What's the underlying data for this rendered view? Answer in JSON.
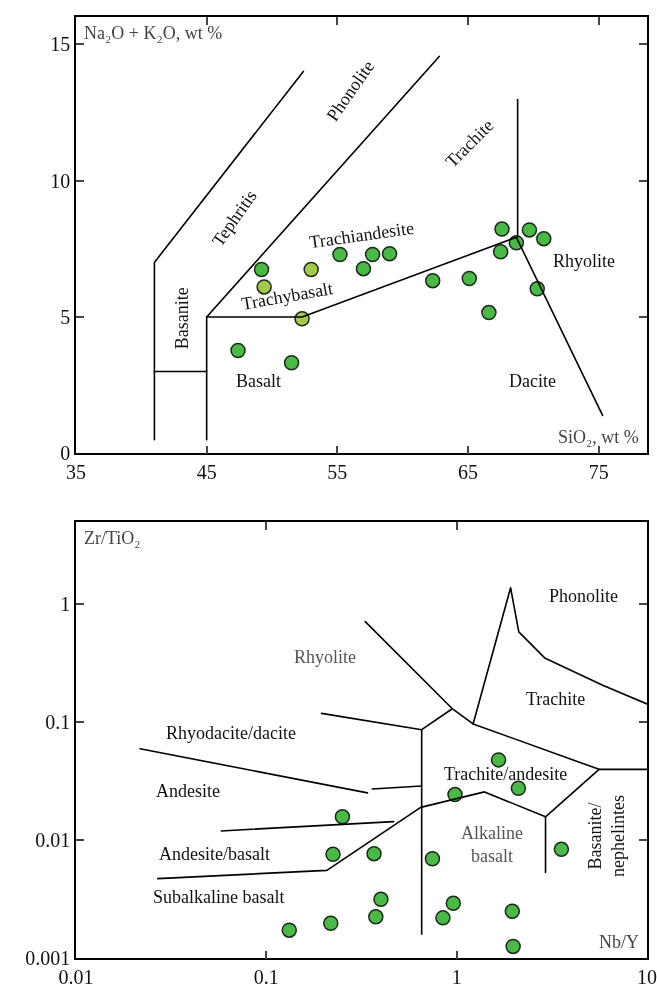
{
  "chart_data": [
    {
      "type": "scatter",
      "xlabel": "SiO₂, wt %",
      "ylabel": "Na₂O + K₂O, wt %",
      "xlim": [
        35,
        78.7
      ],
      "ylim": [
        0,
        16
      ],
      "xticks": [
        35,
        45,
        55,
        65,
        75
      ],
      "yticks": [
        0,
        5,
        10,
        15
      ],
      "series": [
        {
          "marker": "circle",
          "x": [
            49.2,
            49.4,
            53.0,
            52.3,
            55.2,
            57.7,
            57.0,
            59.0,
            62.3,
            65.1,
            66.6,
            67.6,
            67.5,
            68.7,
            69.7,
            70.8,
            70.3,
            47.4,
            51.5
          ],
          "values": [
            6.74,
            6.1,
            6.74,
            4.93,
            7.29,
            7.29,
            6.77,
            7.32,
            6.33,
            6.41,
            5.16,
            8.22,
            7.39,
            7.72,
            8.19,
            7.87,
            6.03,
            3.77,
            3.32
          ],
          "colors": [
            "#4cb848",
            "#a6c84a",
            "#a6c84a",
            "#a6c84a",
            "#4cb848",
            "#4cb848",
            "#4cb848",
            "#4cb848",
            "#4cb848",
            "#4cb848",
            "#4cb848",
            "#4cb848",
            "#4cb848",
            "#4cb848",
            "#4cb848",
            "#4cb848",
            "#4cb848",
            "#4cb848",
            "#4cb848"
          ]
        },
        {
          "type": "line",
          "marker": "none",
          "color": "#000000",
          "x": [
            41,
            41,
            52.4,
            null,
            45,
            45,
            62.8,
            null,
            41,
            45,
            null,
            45,
            52.3,
            68.7,
            75.3,
            null,
            68.8,
            68.8
          ],
          "values": [
            0.5,
            7,
            14,
            null,
            0.5,
            5,
            14.55,
            null,
            3,
            3,
            null,
            5,
            5,
            7.92,
            1.39,
            null,
            12.97,
            7.92
          ]
        }
      ],
      "annotations": [
        "Basanite",
        "Tephritis",
        "Phonolite",
        "Trachite",
        "Trachiandesite",
        "Trachybasalt",
        "Rhyolite",
        "Basalt",
        "Dacite"
      ]
    },
    {
      "type": "scatter",
      "xlabel": "Nb/Y",
      "ylabel": "Zr/TiO₂",
      "log": "xy",
      "xlim": [
        0.01,
        10
      ],
      "ylim": [
        0.001,
        5
      ],
      "xticks": [
        0.01,
        0.1,
        1,
        10
      ],
      "yticks": [
        0.001,
        0.01,
        0.1,
        1
      ],
      "series": [
        {
          "marker": "circle",
          "x": [
            0.132,
            0.218,
            0.376,
            0.4,
            0.224,
            0.368,
            0.251,
            0.746,
            0.98,
            1.66,
            2.11,
            3.55,
            0.96,
            0.847,
            1.96,
            1.98
          ],
          "values": [
            0.00173,
            0.00198,
            0.00225,
            0.00316,
            0.0076,
            0.0077,
            0.0158,
            0.00697,
            0.0244,
            0.048,
            0.0276,
            0.00838,
            0.00292,
            0.0022,
            0.0025,
            0.00126
          ],
          "color": "#4cb848"
        },
        {
          "type": "line",
          "marker": "none",
          "color": "#000000",
          "x": [
            0.331,
            0.955,
            1.22,
            1.92,
            2.12,
            2.9,
            5.89,
            10,
            null,
            0.195,
            0.655,
            0.655,
            null,
            0.655,
            0.94,
            null,
            1.22,
            5.6,
            10,
            null,
            5.6,
            2.93,
            2.93,
            null,
            0.0217,
            0.34,
            null,
            0.36,
            0.655,
            null,
            0.058,
            0.467,
            null,
            0.0269,
            0.208,
            0.647,
            1.4,
            2.93
          ],
          "values": [
            0.713,
            0.129,
            0.0968,
            1.38,
            0.583,
            0.351,
            0.205,
            0.143,
            null,
            0.119,
            0.0865,
            0.0016,
            null,
            0.0865,
            0.129,
            null,
            0.0968,
            0.0399,
            0.0399,
            null,
            0.0399,
            0.0158,
            0.00533,
            null,
            0.0597,
            0.0252,
            null,
            0.0272,
            0.0288,
            null,
            0.012,
            0.0144,
            null,
            0.00473,
            0.00556,
            0.019,
            0.0257,
            0.0158
          ]
        }
      ],
      "annotations": [
        "Rhyolite",
        "Phonolite",
        "Trachite",
        "Rhyodacite/dacite",
        "Andesite",
        "Trachite/andesite",
        "Alkaline\nbasalt",
        "Andesite/basalt",
        "Subalkaline basalt",
        "Basanite/\nnephelintes"
      ]
    }
  ]
}
